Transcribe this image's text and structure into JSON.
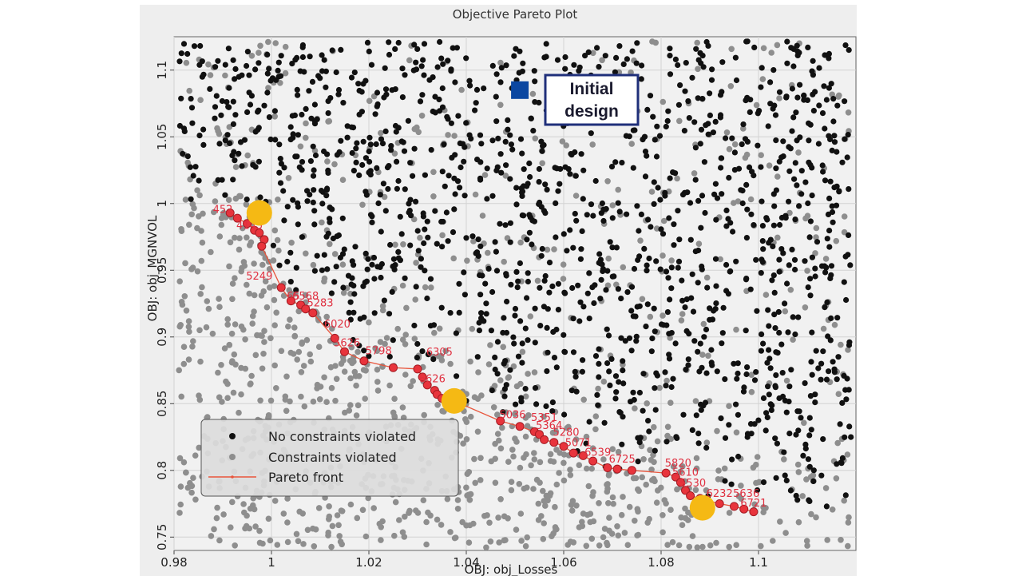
{
  "chart_data": {
    "type": "scatter",
    "title": "Objective Pareto Plot",
    "xlabel": "OBJ: obj_Losses",
    "ylabel": "OBJ: obj_MGNVOL",
    "xlim": [
      0.98,
      1.12
    ],
    "ylim": [
      0.74,
      1.125
    ],
    "xticks": [
      "0.98",
      "1",
      "1.02",
      "1.04",
      "1.06",
      "1.08",
      "1.1"
    ],
    "yticks": [
      "0.75",
      "0.8",
      "0.85",
      "0.9",
      "0.95",
      "1",
      "1.05",
      "1.1"
    ],
    "grid": true,
    "legend": {
      "position": "bottom-left",
      "entries": [
        "No constraints violated",
        "Constraints violated",
        "Pareto front"
      ]
    },
    "series": [
      {
        "name": "No constraints violated",
        "color": "#111111",
        "points": "scattered designs above the Pareto front"
      },
      {
        "name": "Constraints violated",
        "color": "#8e8e8e",
        "points": "scattered designs across the plot, dense below the front"
      },
      {
        "name": "Pareto front",
        "color": "#e8343c",
        "x": [
          0.9915,
          0.993,
          0.995,
          0.9965,
          0.9975,
          0.9985,
          0.998,
          1.002,
          1.004,
          1.006,
          1.007,
          1.0085,
          1.013,
          1.015,
          1.019,
          1.025,
          1.03,
          1.031,
          1.032,
          1.0335,
          1.034,
          1.035,
          1.0375,
          1.047,
          1.051,
          1.054,
          1.055,
          1.056,
          1.058,
          1.06,
          1.062,
          1.064,
          1.066,
          1.069,
          1.071,
          1.074,
          1.081,
          1.083,
          1.084,
          1.085,
          1.086,
          1.088,
          1.092,
          1.095,
          1.097,
          1.099
        ],
        "y": [
          0.993,
          0.989,
          0.985,
          0.98,
          0.978,
          0.973,
          0.968,
          0.937,
          0.927,
          0.924,
          0.921,
          0.918,
          0.899,
          0.889,
          0.882,
          0.877,
          0.876,
          0.87,
          0.864,
          0.86,
          0.857,
          0.854,
          0.852,
          0.837,
          0.833,
          0.829,
          0.827,
          0.823,
          0.821,
          0.818,
          0.813,
          0.811,
          0.807,
          0.802,
          0.801,
          0.8,
          0.798,
          0.795,
          0.791,
          0.785,
          0.781,
          0.779,
          0.775,
          0.773,
          0.771,
          0.769
        ]
      }
    ],
    "point_labels": [
      {
        "text": "452",
        "x": 0.99,
        "y": 0.993
      },
      {
        "text": "4145",
        "x": 0.9955,
        "y": 0.981
      },
      {
        "text": "5249",
        "x": 0.9975,
        "y": 0.943
      },
      {
        "text": "65",
        "x": 1.0045,
        "y": 0.928
      },
      {
        "text": "6568",
        "x": 1.007,
        "y": 0.928
      },
      {
        "text": "5283",
        "x": 1.01,
        "y": 0.923
      },
      {
        "text": "6020",
        "x": 1.0135,
        "y": 0.907
      },
      {
        "text": "5626",
        "x": 1.0155,
        "y": 0.893
      },
      {
        "text": "5798",
        "x": 1.022,
        "y": 0.887
      },
      {
        "text": "6305",
        "x": 1.0345,
        "y": 0.886
      },
      {
        "text": "6626",
        "x": 1.033,
        "y": 0.866
      },
      {
        "text": "5036",
        "x": 1.0495,
        "y": 0.839
      },
      {
        "text": "5351",
        "x": 1.056,
        "y": 0.837
      },
      {
        "text": "5364",
        "x": 1.057,
        "y": 0.831
      },
      {
        "text": "5280",
        "x": 1.0605,
        "y": 0.826
      },
      {
        "text": "5071",
        "x": 1.063,
        "y": 0.818
      },
      {
        "text": "6539",
        "x": 1.067,
        "y": 0.811
      },
      {
        "text": "6725",
        "x": 1.072,
        "y": 0.806
      },
      {
        "text": "5820",
        "x": 1.0835,
        "y": 0.803
      },
      {
        "text": "5610",
        "x": 1.085,
        "y": 0.796
      },
      {
        "text": "5530",
        "x": 1.0865,
        "y": 0.788
      },
      {
        "text": "6232",
        "x": 1.092,
        "y": 0.78
      },
      {
        "text": "5636",
        "x": 1.0975,
        "y": 0.78
      },
      {
        "text": "6721",
        "x": 1.099,
        "y": 0.773
      }
    ],
    "highlighted_designs": [
      {
        "x": 0.9975,
        "y": 0.993,
        "color": "#f5b914"
      },
      {
        "x": 1.0375,
        "y": 0.852,
        "color": "#f5b914"
      },
      {
        "x": 1.0885,
        "y": 0.772,
        "color": "#f5b914"
      }
    ],
    "annotation": {
      "lines": [
        "Initial",
        "design"
      ],
      "marker_x": 1.051,
      "marker_y": 1.085,
      "marker_color": "#0b47a1"
    }
  }
}
